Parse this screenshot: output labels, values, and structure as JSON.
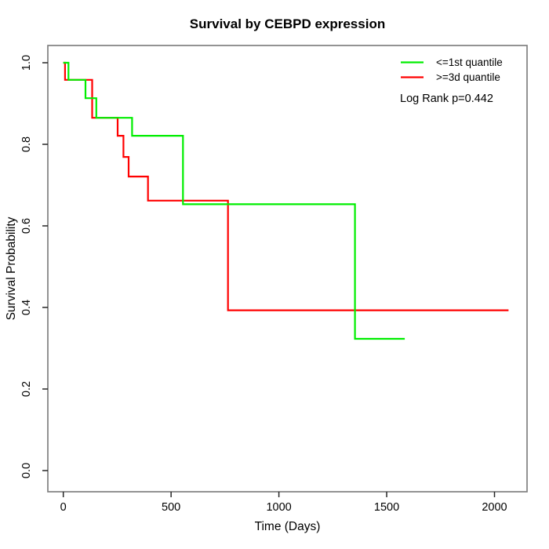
{
  "chart_data": {
    "type": "line",
    "subtype": "kaplan-meier-step-survival",
    "title": "Survival by CEBPD expression",
    "xlabel": "Time (Days)",
    "ylabel": "Survival Probability",
    "xlim": [
      -72,
      2152
    ],
    "ylim": [
      -0.04,
      1.04
    ],
    "grid": false,
    "x_ticks": [
      0,
      500,
      1000,
      1500,
      2000
    ],
    "x_tick_labels": [
      "0",
      "500",
      "1000",
      "1500",
      "2000"
    ],
    "y_ticks": [
      0.0,
      0.2,
      0.4,
      0.6,
      0.8,
      1.0
    ],
    "y_tick_labels": [
      "0.0",
      "0.2",
      "0.4",
      "0.6",
      "0.8",
      "1.0"
    ],
    "legend_position": "top-right",
    "annotation": "Log Rank p=0.442",
    "series": [
      {
        "name": ">=3d quantile",
        "color": "#ff0000",
        "points": [
          [
            0,
            1.0
          ],
          [
            8,
            0.958
          ],
          [
            134,
            0.865
          ],
          [
            252,
            0.821
          ],
          [
            279,
            0.769
          ],
          [
            303,
            0.721
          ],
          [
            393,
            0.662
          ],
          [
            764,
            0.393
          ]
        ],
        "end_day": 2065
      },
      {
        "name": "<=1st quantile",
        "color": "#00ee00",
        "points": [
          [
            0,
            1.0
          ],
          [
            24,
            0.958
          ],
          [
            103,
            0.913
          ],
          [
            153,
            0.865
          ],
          [
            319,
            0.821
          ],
          [
            555,
            0.653
          ],
          [
            1353,
            0.323
          ]
        ],
        "end_day": 1584
      }
    ],
    "legend_order": [
      1,
      0
    ]
  },
  "frame": {
    "box_color": "#808080",
    "tick_color": "#262626"
  }
}
